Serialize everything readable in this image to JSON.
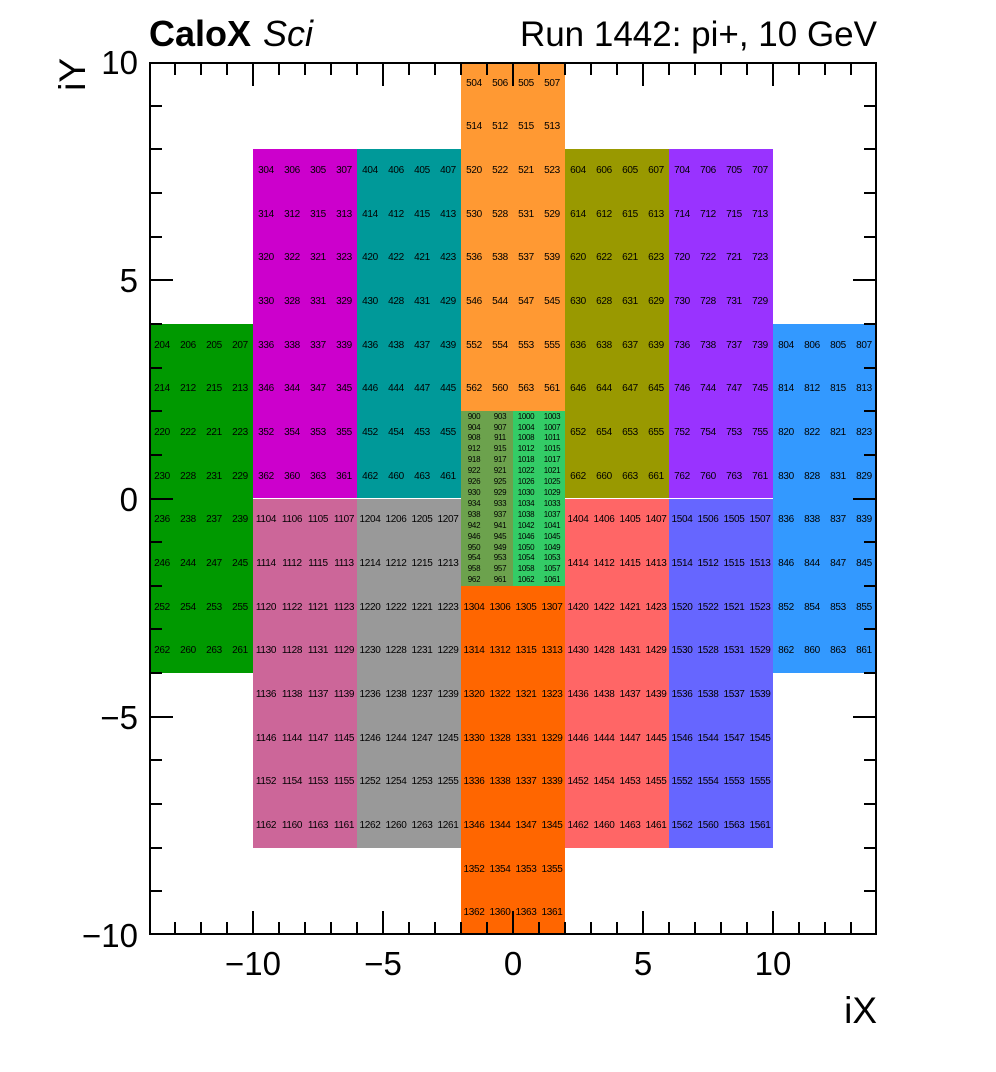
{
  "header": {
    "title_left_bold": "CaloX",
    "title_left_italic": "Sci",
    "title_right": "Run 1442: pi+, 10 GeV"
  },
  "axes": {
    "x_title": "iX",
    "y_title": "iY",
    "x_range": [
      -14,
      14
    ],
    "y_range": [
      -10,
      10
    ],
    "minor_tick_step": 1,
    "x_major_ticks": [
      {
        "value": -10,
        "label": "−10"
      },
      {
        "value": -5,
        "label": "−5"
      },
      {
        "value": 0,
        "label": "0"
      },
      {
        "value": 5,
        "label": "5"
      },
      {
        "value": 10,
        "label": "10"
      }
    ],
    "y_major_ticks": [
      {
        "value": 10,
        "label": "10"
      },
      {
        "value": 5,
        "label": "5"
      },
      {
        "value": 0,
        "label": "0"
      },
      {
        "value": -5,
        "label": "−5"
      },
      {
        "value": -10,
        "label": "−10"
      }
    ]
  },
  "chart_data": {
    "type": "heatmap",
    "title": "Run 1442: pi+, 10 GeV",
    "xlabel": "iX",
    "ylabel": "iY",
    "xlim": [
      -14,
      14
    ],
    "ylim": [
      -10,
      10
    ],
    "grid": false,
    "modules": [
      {
        "name": "module-200",
        "color": "#009900",
        "ix": [
          -14,
          -10
        ],
        "iy": [
          -4,
          4
        ],
        "cols": 4,
        "cell_numbers": [
          [
            204,
            206,
            205,
            207
          ],
          [
            214,
            212,
            215,
            213
          ],
          [
            220,
            222,
            221,
            223
          ],
          [
            230,
            228,
            231,
            229
          ],
          [
            236,
            238,
            237,
            239
          ],
          [
            246,
            244,
            247,
            245
          ],
          [
            252,
            254,
            253,
            255
          ],
          [
            262,
            260,
            263,
            261
          ]
        ]
      },
      {
        "name": "module-300",
        "color": "#CC00CC",
        "ix": [
          -10,
          -6
        ],
        "iy": [
          0,
          8
        ],
        "cols": 4,
        "cell_numbers": [
          [
            304,
            306,
            305,
            307
          ],
          [
            314,
            312,
            315,
            313
          ],
          [
            320,
            322,
            321,
            323
          ],
          [
            330,
            328,
            331,
            329
          ],
          [
            336,
            338,
            337,
            339
          ],
          [
            346,
            344,
            347,
            345
          ],
          [
            352,
            354,
            353,
            355
          ],
          [
            362,
            360,
            363,
            361
          ]
        ]
      },
      {
        "name": "module-400",
        "color": "#009999",
        "ix": [
          -6,
          -2
        ],
        "iy": [
          0,
          8
        ],
        "cols": 4,
        "cell_numbers": [
          [
            404,
            406,
            405,
            407
          ],
          [
            414,
            412,
            415,
            413
          ],
          [
            420,
            422,
            421,
            423
          ],
          [
            430,
            428,
            431,
            429
          ],
          [
            436,
            438,
            437,
            439
          ],
          [
            446,
            444,
            447,
            445
          ],
          [
            452,
            454,
            453,
            455
          ],
          [
            462,
            460,
            463,
            461
          ]
        ]
      },
      {
        "name": "module-500",
        "color": "#FF9933",
        "ix": [
          -2,
          2
        ],
        "iy": [
          2,
          10
        ],
        "cols": 4,
        "cell_numbers": [
          [
            504,
            506,
            505,
            507
          ],
          [
            514,
            512,
            515,
            513
          ],
          [
            520,
            522,
            521,
            523
          ],
          [
            530,
            528,
            531,
            529
          ],
          [
            536,
            538,
            537,
            539
          ],
          [
            546,
            544,
            547,
            545
          ],
          [
            552,
            554,
            553,
            555
          ],
          [
            562,
            560,
            563,
            561
          ]
        ]
      },
      {
        "name": "module-600",
        "color": "#999900",
        "ix": [
          2,
          6
        ],
        "iy": [
          0,
          8
        ],
        "cols": 4,
        "cell_numbers": [
          [
            604,
            606,
            605,
            607
          ],
          [
            614,
            612,
            615,
            613
          ],
          [
            620,
            622,
            621,
            623
          ],
          [
            630,
            628,
            631,
            629
          ],
          [
            636,
            638,
            637,
            639
          ],
          [
            646,
            644,
            647,
            645
          ],
          [
            652,
            654,
            653,
            655
          ],
          [
            662,
            660,
            663,
            661
          ]
        ]
      },
      {
        "name": "module-700",
        "color": "#9933FF",
        "ix": [
          6,
          10
        ],
        "iy": [
          0,
          8
        ],
        "cols": 4,
        "cell_numbers": [
          [
            704,
            706,
            705,
            707
          ],
          [
            714,
            712,
            715,
            713
          ],
          [
            720,
            722,
            721,
            723
          ],
          [
            730,
            728,
            731,
            729
          ],
          [
            736,
            738,
            737,
            739
          ],
          [
            746,
            744,
            747,
            745
          ],
          [
            752,
            754,
            753,
            755
          ],
          [
            762,
            760,
            763,
            761
          ]
        ]
      },
      {
        "name": "module-800",
        "color": "#3399FF",
        "ix": [
          10,
          14
        ],
        "iy": [
          -4,
          4
        ],
        "cols": 4,
        "cell_numbers": [
          [
            804,
            806,
            805,
            807
          ],
          [
            814,
            812,
            815,
            813
          ],
          [
            820,
            822,
            821,
            823
          ],
          [
            830,
            828,
            831,
            829
          ],
          [
            836,
            838,
            837,
            839
          ],
          [
            846,
            844,
            847,
            845
          ],
          [
            852,
            854,
            853,
            855
          ],
          [
            862,
            860,
            863,
            861
          ]
        ]
      },
      {
        "name": "module-900",
        "color": "#6CA24D",
        "ix": [
          -2,
          0
        ],
        "iy": [
          -2,
          2
        ],
        "cols": 2,
        "cell_numbers": [
          [
            900,
            903
          ],
          [
            904,
            907
          ],
          [
            908,
            911
          ],
          [
            912,
            915
          ],
          [
            918,
            917
          ],
          [
            922,
            921
          ],
          [
            926,
            925
          ],
          [
            930,
            929
          ],
          [
            934,
            933
          ],
          [
            938,
            937
          ],
          [
            942,
            941
          ],
          [
            946,
            945
          ],
          [
            950,
            949
          ],
          [
            954,
            953
          ],
          [
            958,
            957
          ],
          [
            962,
            961
          ]
        ]
      },
      {
        "name": "module-1000",
        "color": "#33CC66",
        "ix": [
          0,
          2
        ],
        "iy": [
          -2,
          2
        ],
        "cols": 2,
        "cell_numbers": [
          [
            1000,
            1003
          ],
          [
            1004,
            1007
          ],
          [
            1008,
            1011
          ],
          [
            1012,
            1015
          ],
          [
            1018,
            1017
          ],
          [
            1022,
            1021
          ],
          [
            1026,
            1025
          ],
          [
            1030,
            1029
          ],
          [
            1034,
            1033
          ],
          [
            1038,
            1037
          ],
          [
            1042,
            1041
          ],
          [
            1046,
            1045
          ],
          [
            1050,
            1049
          ],
          [
            1054,
            1053
          ],
          [
            1058,
            1057
          ],
          [
            1062,
            1061
          ]
        ]
      },
      {
        "name": "module-1100",
        "color": "#CC6699",
        "ix": [
          -10,
          -6
        ],
        "iy": [
          -8,
          0
        ],
        "cols": 4,
        "cell_numbers": [
          [
            1104,
            1106,
            1105,
            1107
          ],
          [
            1114,
            1112,
            1115,
            1113
          ],
          [
            1120,
            1122,
            1121,
            1123
          ],
          [
            1130,
            1128,
            1131,
            1129
          ],
          [
            1136,
            1138,
            1137,
            1139
          ],
          [
            1146,
            1144,
            1147,
            1145
          ],
          [
            1152,
            1154,
            1153,
            1155
          ],
          [
            1162,
            1160,
            1163,
            1161
          ]
        ]
      },
      {
        "name": "module-1200",
        "color": "#999999",
        "ix": [
          -6,
          -2
        ],
        "iy": [
          -8,
          0
        ],
        "cols": 4,
        "cell_numbers": [
          [
            1204,
            1206,
            1205,
            1207
          ],
          [
            1214,
            1212,
            1215,
            1213
          ],
          [
            1220,
            1222,
            1221,
            1223
          ],
          [
            1230,
            1228,
            1231,
            1229
          ],
          [
            1236,
            1238,
            1237,
            1239
          ],
          [
            1246,
            1244,
            1247,
            1245
          ],
          [
            1252,
            1254,
            1253,
            1255
          ],
          [
            1262,
            1260,
            1263,
            1261
          ]
        ]
      },
      {
        "name": "module-1300",
        "color": "#FF6600",
        "ix": [
          -2,
          2
        ],
        "iy": [
          -10,
          -2
        ],
        "cols": 4,
        "cell_numbers": [
          [
            1304,
            1306,
            1305,
            1307
          ],
          [
            1314,
            1312,
            1315,
            1313
          ],
          [
            1320,
            1322,
            1321,
            1323
          ],
          [
            1330,
            1328,
            1331,
            1329
          ],
          [
            1336,
            1338,
            1337,
            1339
          ],
          [
            1346,
            1344,
            1347,
            1345
          ],
          [
            1352,
            1354,
            1353,
            1355
          ],
          [
            1362,
            1360,
            1363,
            1361
          ]
        ]
      },
      {
        "name": "module-1400",
        "color": "#FF6666",
        "ix": [
          2,
          6
        ],
        "iy": [
          -8,
          0
        ],
        "cols": 4,
        "cell_numbers": [
          [
            1404,
            1406,
            1405,
            1407
          ],
          [
            1414,
            1412,
            1415,
            1413
          ],
          [
            1420,
            1422,
            1421,
            1423
          ],
          [
            1430,
            1428,
            1431,
            1429
          ],
          [
            1436,
            1438,
            1437,
            1439
          ],
          [
            1446,
            1444,
            1447,
            1445
          ],
          [
            1452,
            1454,
            1453,
            1455
          ],
          [
            1462,
            1460,
            1463,
            1461
          ]
        ]
      },
      {
        "name": "module-1500",
        "color": "#6666FF",
        "ix": [
          6,
          10
        ],
        "iy": [
          -8,
          0
        ],
        "cols": 4,
        "cell_numbers": [
          [
            1504,
            1506,
            1505,
            1507
          ],
          [
            1514,
            1512,
            1515,
            1513
          ],
          [
            1520,
            1522,
            1521,
            1523
          ],
          [
            1530,
            1528,
            1531,
            1529
          ],
          [
            1536,
            1538,
            1537,
            1539
          ],
          [
            1546,
            1544,
            1547,
            1545
          ],
          [
            1552,
            1554,
            1553,
            1555
          ],
          [
            1562,
            1560,
            1563,
            1561
          ]
        ]
      }
    ]
  }
}
